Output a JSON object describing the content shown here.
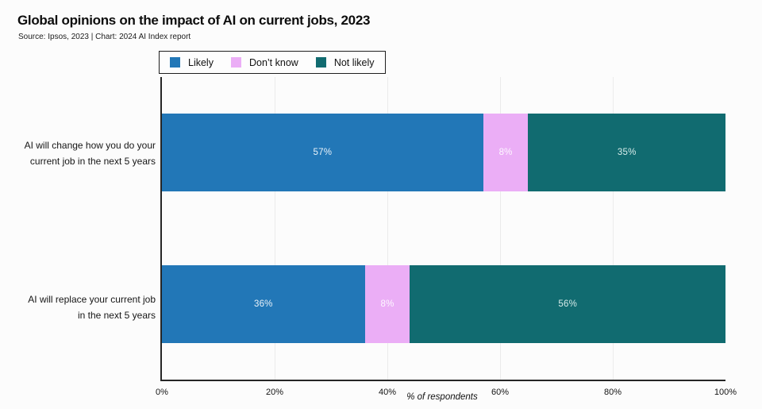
{
  "header": {
    "title": "Global opinions on the impact of AI on current jobs, 2023",
    "source": "Source: Ipsos, 2023 | Chart: 2024 AI Index report"
  },
  "legend": {
    "items": [
      {
        "label": "Likely",
        "color": "#2277b7"
      },
      {
        "label": "Don’t know",
        "color": "#ebaef6"
      },
      {
        "label": "Not likely",
        "color": "#116b70"
      }
    ]
  },
  "chart_data": {
    "type": "bar",
    "orientation": "horizontal",
    "stacked": true,
    "title": "Global opinions on the impact of AI on current jobs, 2023",
    "xlabel": "% of respondents",
    "xlim": [
      0,
      100
    ],
    "xtick_labels": [
      "0%",
      "20%",
      "40%",
      "60%",
      "80%",
      "100%"
    ],
    "xtick_values": [
      0,
      20,
      40,
      60,
      80,
      100
    ],
    "grid_values": [
      20,
      40,
      60,
      80
    ],
    "grid": true,
    "legend_position": "top",
    "categories": [
      "AI will change how you do your current job in the next 5 years",
      "AI will replace your current job in the next 5 years"
    ],
    "category_lines": [
      [
        "AI will change how you do your",
        "current job in the next 5 years"
      ],
      [
        "AI will replace your current job",
        "in the next 5 years"
      ]
    ],
    "series": [
      {
        "name": "Likely",
        "color": "#2277b7",
        "label_color": "#e9f2f9",
        "values": [
          57,
          36
        ]
      },
      {
        "name": "Don’t know",
        "color": "#ebaef6",
        "label_color": "#fdf8ff",
        "values": [
          8,
          8
        ]
      },
      {
        "name": "Not likely",
        "color": "#116b70",
        "label_color": "#d6ebe9",
        "values": [
          35,
          56
        ]
      }
    ],
    "value_suffix": "%"
  }
}
